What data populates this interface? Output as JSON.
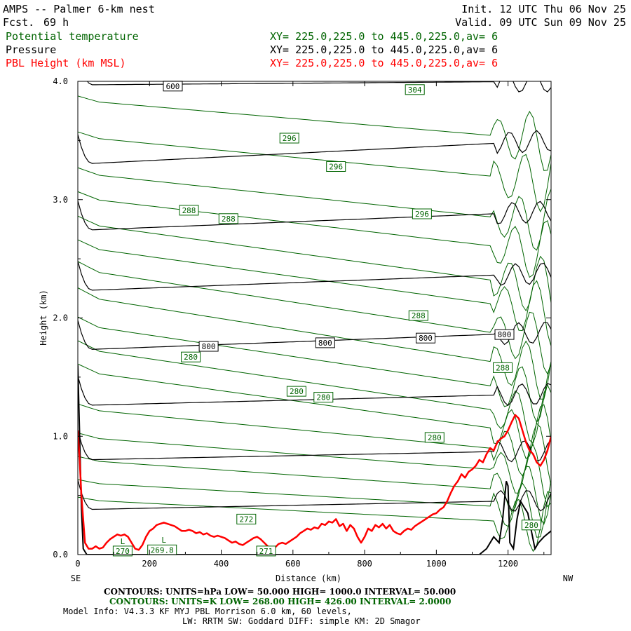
{
  "header": {
    "title": "AMPS -- Palmer 6-km nest",
    "fcst_label": "Fcst.",
    "fcst_value": "69 h",
    "init": "Init. 12 UTC Thu 06 Nov 25",
    "valid": "Valid. 09 UTC Sun 09 Nov 25"
  },
  "fields": [
    {
      "name": "Potential temperature",
      "xy": "XY= 225.0,225.0 to 445.0,225.0,av=  6",
      "color": "#006400"
    },
    {
      "name": "Pressure",
      "xy": "XY= 225.0,225.0 to 445.0,225.0,av=  6",
      "color": "#000000"
    },
    {
      "name": "PBL Height (km MSL)",
      "xy": "XY= 225.0,225.0 to 445.0,225.0,av=  6",
      "color": "#ff0000"
    }
  ],
  "axes": {
    "xlabel": "Distance (km)",
    "ylabel": "Height (km)",
    "left_end": "SE",
    "right_end": "NW"
  },
  "footer": {
    "pressure_contours": "CONTOURS:  UNITS=hPa  LOW=   50.000       HIGH=   1000.0       INTERVAL=    50.000",
    "theta_contours": "CONTOURS:  UNITS=K  LOW=   268.00        HIGH=   426.00        INTERVAL=    2.0000",
    "model_info_1": "Model Info: V4.3.3   KF      MYJ PBL  Morrison           6.0 km,  60 levels,",
    "model_info_2": "LW: RRTM SW: Goddard DIFF: simple KM: 2D Smagor"
  },
  "chart_data": {
    "type": "line",
    "xlim": [
      0,
      1320
    ],
    "ylim": [
      0,
      4.0
    ],
    "x_ticks": [
      "0",
      "200",
      "400",
      "600",
      "800",
      "1000",
      "1200"
    ],
    "y_ticks": [
      "0.0",
      "1.0",
      "2.0",
      "3.0",
      "4.0"
    ],
    "pressure_isobars": [
      {
        "left": 0.38,
        "right": 0.46
      },
      {
        "left": 0.8,
        "right": 0.88
      },
      {
        "left": 1.26,
        "right": 1.36
      },
      {
        "left": 1.73,
        "right": 1.88
      },
      {
        "left": 2.23,
        "right": 2.38
      },
      {
        "left": 2.74,
        "right": 2.9
      },
      {
        "left": 3.3,
        "right": 3.5
      },
      {
        "left": 3.97,
        "right": 4.0
      }
    ],
    "theta_isentropes": [
      {
        "left": 3.9,
        "right": 3.5
      },
      {
        "left": 3.6,
        "right": 3.15
      },
      {
        "left": 3.3,
        "right": 2.8
      },
      {
        "left": 3.1,
        "right": 2.55
      },
      {
        "left": 2.9,
        "right": 2.25
      },
      {
        "left": 2.7,
        "right": 2.05
      },
      {
        "left": 2.52,
        "right": 1.8
      },
      {
        "left": 2.3,
        "right": 1.55
      },
      {
        "left": 2.05,
        "right": 1.35
      },
      {
        "left": 1.85,
        "right": 1.15
      },
      {
        "left": 1.65,
        "right": 1.0
      },
      {
        "left": 1.3,
        "right": 0.85
      },
      {
        "left": 1.05,
        "right": 0.68
      },
      {
        "left": 0.85,
        "right": 0.52
      },
      {
        "left": 0.65,
        "right": 0.38
      },
      {
        "left": 0.5,
        "right": 0.26
      }
    ],
    "pressure_labels": [
      {
        "text": "600",
        "x": 265,
        "y": 3.96
      },
      {
        "text": "800",
        "x": 365,
        "y": 1.76
      },
      {
        "text": "800",
        "x": 690,
        "y": 1.79
      },
      {
        "text": "800",
        "x": 970,
        "y": 1.83
      },
      {
        "text": "800",
        "x": 1190,
        "y": 1.86
      }
    ],
    "theta_labels": [
      {
        "text": "304",
        "x": 940,
        "y": 3.93
      },
      {
        "text": "296",
        "x": 590,
        "y": 3.52
      },
      {
        "text": "296",
        "x": 720,
        "y": 3.28
      },
      {
        "text": "296",
        "x": 960,
        "y": 2.88
      },
      {
        "text": "288",
        "x": 310,
        "y": 2.91
      },
      {
        "text": "288",
        "x": 420,
        "y": 2.84
      },
      {
        "text": "288",
        "x": 950,
        "y": 2.02
      },
      {
        "text": "288",
        "x": 1185,
        "y": 1.58
      },
      {
        "text": "280",
        "x": 315,
        "y": 1.67
      },
      {
        "text": "280",
        "x": 610,
        "y": 1.38
      },
      {
        "text": "280",
        "x": 685,
        "y": 1.33
      },
      {
        "text": "280",
        "x": 995,
        "y": 0.99
      },
      {
        "text": "280",
        "x": 1265,
        "y": 0.25
      },
      {
        "text": "272",
        "x": 470,
        "y": 0.3
      },
      {
        "text": "271",
        "x": 525,
        "y": 0.03
      },
      {
        "text": "269.8",
        "x": 235,
        "y": 0.04
      },
      {
        "text": "270",
        "x": 125,
        "y": 0.03
      }
    ],
    "lows": [
      {
        "text": "L",
        "x": 125,
        "y": 0.12
      },
      {
        "text": "L",
        "x": 240,
        "y": 0.13
      }
    ],
    "terrain": [
      [
        0,
        1.6
      ],
      [
        5,
        1.0
      ],
      [
        10,
        0.4
      ],
      [
        15,
        0.05
      ],
      [
        25,
        0.0
      ],
      [
        1120,
        0.0
      ],
      [
        1140,
        0.05
      ],
      [
        1160,
        0.15
      ],
      [
        1175,
        0.1
      ],
      [
        1185,
        0.3
      ],
      [
        1195,
        0.62
      ],
      [
        1200,
        0.58
      ],
      [
        1205,
        0.1
      ],
      [
        1215,
        0.05
      ],
      [
        1225,
        0.3
      ],
      [
        1235,
        0.45
      ],
      [
        1245,
        0.4
      ],
      [
        1255,
        0.35
      ],
      [
        1265,
        0.2
      ],
      [
        1275,
        0.05
      ],
      [
        1285,
        0.1
      ],
      [
        1300,
        0.15
      ],
      [
        1320,
        0.2
      ]
    ],
    "pbl_height": [
      [
        0,
        1.05
      ],
      [
        5,
        0.8
      ],
      [
        10,
        0.5
      ],
      [
        20,
        0.1
      ],
      [
        30,
        0.05
      ],
      [
        40,
        0.05
      ],
      [
        50,
        0.07
      ],
      [
        60,
        0.05
      ],
      [
        70,
        0.06
      ],
      [
        80,
        0.1
      ],
      [
        90,
        0.13
      ],
      [
        100,
        0.15
      ],
      [
        110,
        0.17
      ],
      [
        120,
        0.16
      ],
      [
        130,
        0.17
      ],
      [
        140,
        0.15
      ],
      [
        150,
        0.1
      ],
      [
        160,
        0.05
      ],
      [
        170,
        0.04
      ],
      [
        180,
        0.08
      ],
      [
        190,
        0.15
      ],
      [
        200,
        0.2
      ],
      [
        210,
        0.22
      ],
      [
        220,
        0.25
      ],
      [
        230,
        0.26
      ],
      [
        240,
        0.27
      ],
      [
        250,
        0.26
      ],
      [
        260,
        0.25
      ],
      [
        270,
        0.24
      ],
      [
        280,
        0.22
      ],
      [
        290,
        0.2
      ],
      [
        300,
        0.2
      ],
      [
        310,
        0.21
      ],
      [
        320,
        0.2
      ],
      [
        330,
        0.18
      ],
      [
        340,
        0.19
      ],
      [
        350,
        0.17
      ],
      [
        360,
        0.18
      ],
      [
        370,
        0.16
      ],
      [
        380,
        0.15
      ],
      [
        390,
        0.16
      ],
      [
        400,
        0.15
      ],
      [
        410,
        0.14
      ],
      [
        420,
        0.12
      ],
      [
        430,
        0.1
      ],
      [
        440,
        0.11
      ],
      [
        450,
        0.09
      ],
      [
        460,
        0.08
      ],
      [
        470,
        0.1
      ],
      [
        480,
        0.12
      ],
      [
        490,
        0.14
      ],
      [
        500,
        0.15
      ],
      [
        510,
        0.13
      ],
      [
        520,
        0.1
      ],
      [
        530,
        0.07
      ],
      [
        540,
        0.05
      ],
      [
        550,
        0.06
      ],
      [
        560,
        0.09
      ],
      [
        570,
        0.1
      ],
      [
        580,
        0.09
      ],
      [
        590,
        0.11
      ],
      [
        600,
        0.13
      ],
      [
        610,
        0.15
      ],
      [
        620,
        0.18
      ],
      [
        630,
        0.2
      ],
      [
        640,
        0.22
      ],
      [
        650,
        0.21
      ],
      [
        660,
        0.23
      ],
      [
        670,
        0.22
      ],
      [
        680,
        0.26
      ],
      [
        690,
        0.25
      ],
      [
        700,
        0.28
      ],
      [
        710,
        0.27
      ],
      [
        720,
        0.3
      ],
      [
        730,
        0.24
      ],
      [
        740,
        0.26
      ],
      [
        750,
        0.2
      ],
      [
        760,
        0.25
      ],
      [
        770,
        0.22
      ],
      [
        780,
        0.15
      ],
      [
        790,
        0.1
      ],
      [
        800,
        0.15
      ],
      [
        810,
        0.22
      ],
      [
        820,
        0.2
      ],
      [
        830,
        0.25
      ],
      [
        840,
        0.23
      ],
      [
        850,
        0.26
      ],
      [
        860,
        0.22
      ],
      [
        870,
        0.25
      ],
      [
        880,
        0.2
      ],
      [
        890,
        0.18
      ],
      [
        900,
        0.17
      ],
      [
        910,
        0.2
      ],
      [
        920,
        0.22
      ],
      [
        930,
        0.21
      ],
      [
        940,
        0.24
      ],
      [
        950,
        0.26
      ],
      [
        960,
        0.28
      ],
      [
        970,
        0.3
      ],
      [
        980,
        0.32
      ],
      [
        990,
        0.34
      ],
      [
        1000,
        0.35
      ],
      [
        1010,
        0.38
      ],
      [
        1020,
        0.4
      ],
      [
        1030,
        0.45
      ],
      [
        1040,
        0.52
      ],
      [
        1050,
        0.58
      ],
      [
        1060,
        0.62
      ],
      [
        1070,
        0.68
      ],
      [
        1080,
        0.65
      ],
      [
        1090,
        0.7
      ],
      [
        1100,
        0.72
      ],
      [
        1110,
        0.75
      ],
      [
        1120,
        0.8
      ],
      [
        1130,
        0.78
      ],
      [
        1140,
        0.85
      ],
      [
        1150,
        0.9
      ],
      [
        1160,
        0.88
      ],
      [
        1170,
        0.95
      ],
      [
        1180,
        0.98
      ],
      [
        1190,
        1.0
      ],
      [
        1200,
        1.05
      ],
      [
        1210,
        1.12
      ],
      [
        1220,
        1.18
      ],
      [
        1230,
        1.15
      ],
      [
        1240,
        1.05
      ],
      [
        1250,
        0.95
      ],
      [
        1260,
        0.88
      ],
      [
        1270,
        0.85
      ],
      [
        1280,
        0.78
      ],
      [
        1290,
        0.75
      ],
      [
        1300,
        0.8
      ],
      [
        1310,
        0.88
      ],
      [
        1320,
        1.0
      ]
    ]
  }
}
